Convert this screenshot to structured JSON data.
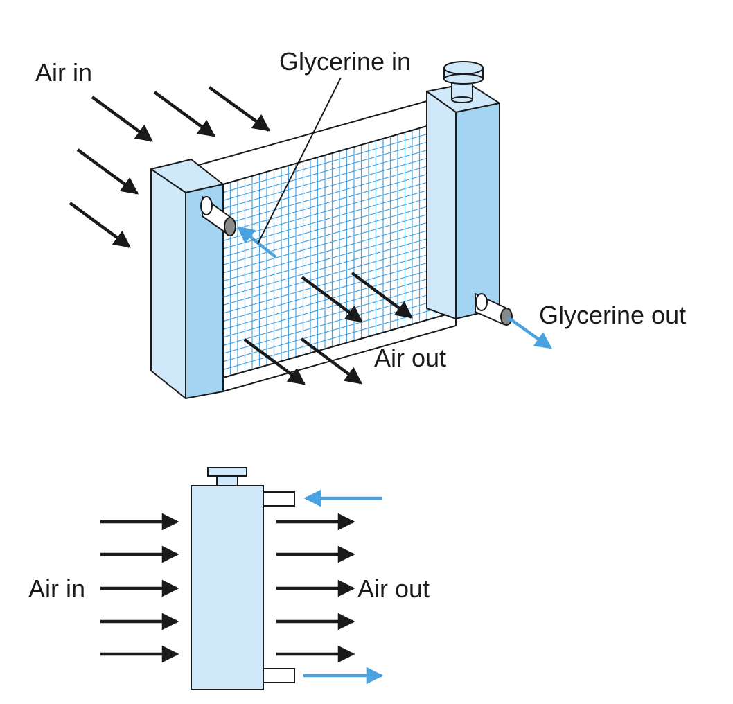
{
  "labels": {
    "top_air_in": "Air in",
    "glycerine_in": "Glycerine in",
    "glycerine_out": "Glycerine out",
    "top_air_out": "Air out",
    "side_air_in": "Air in",
    "side_air_out": "Air out"
  },
  "colors": {
    "tank_light": "#cfe8fa",
    "tank_side": "#a3d5f3",
    "grid_line": "#4aa3e0",
    "flow_arrow": "#4aa3e0",
    "air_arrow": "#1a1a1a"
  }
}
